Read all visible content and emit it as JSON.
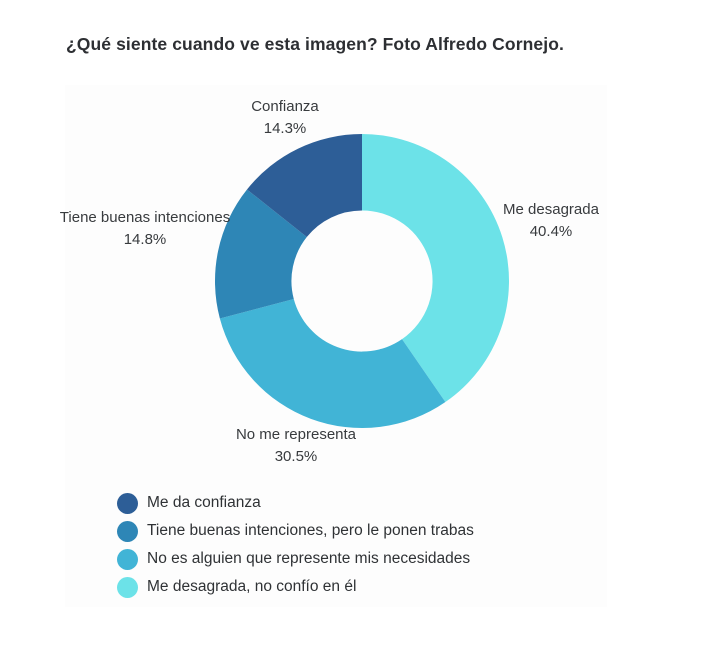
{
  "title": "¿Qué siente cuando ve esta imagen? Foto Alfredo Cornejo.",
  "chart_data": {
    "type": "pie",
    "subtype": "donut",
    "direction": "clockwise",
    "start_angle_deg": 0,
    "inner_radius_ratio": 0.48,
    "legend_position": "bottom-left",
    "slices": [
      {
        "label": "Me desagrada",
        "percent_label": "40.4%",
        "value": 40.4,
        "color": "#6ce2e8"
      },
      {
        "label": "No me representa",
        "percent_label": "30.5%",
        "value": 30.5,
        "color": "#41b4d6"
      },
      {
        "label": "Tiene buenas intenciones",
        "percent_label": "14.8%",
        "value": 14.8,
        "color": "#2e86b6"
      },
      {
        "label": "Confianza",
        "percent_label": "14.3%",
        "value": 14.3,
        "color": "#2d5e97"
      }
    ]
  },
  "legend": {
    "items": [
      {
        "label": "Me da confianza",
        "color": "#2d5e97"
      },
      {
        "label": "Tiene buenas intenciones, pero le ponen trabas",
        "color": "#2e86b6"
      },
      {
        "label": "No es alguien que represente mis necesidades",
        "color": "#41b4d6"
      },
      {
        "label": "Me desagrada, no confío en él",
        "color": "#6ce2e8"
      }
    ]
  }
}
